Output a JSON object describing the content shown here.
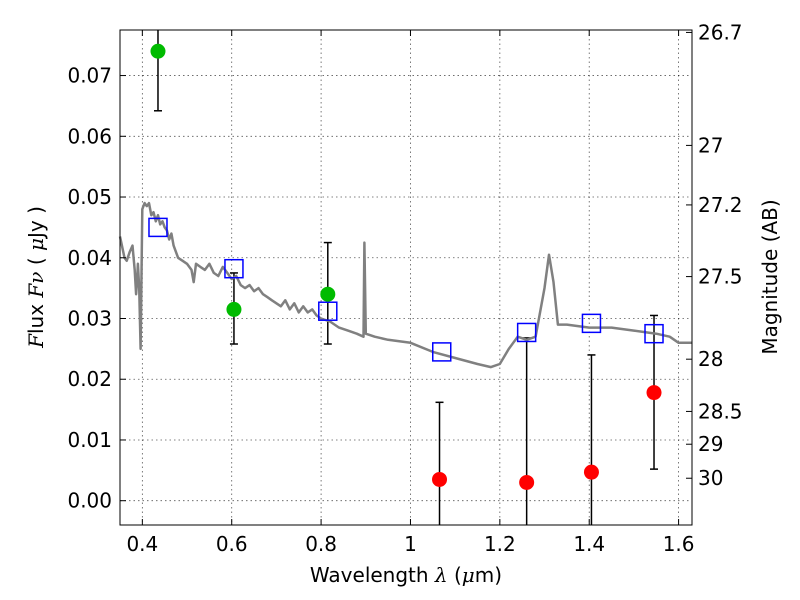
{
  "chart_data": {
    "type": "scatter",
    "title": "",
    "xlabel": "Wavelength  λ (μm)",
    "ylabel": "Flux  Fν  ( μJy )",
    "y2label": "Magnitude (AB)",
    "xlim": [
      0.35,
      1.63
    ],
    "ylim": [
      -0.004,
      0.0775
    ],
    "grid": true,
    "x_ticks": [
      0.4,
      0.6,
      0.8,
      1.0,
      1.2,
      1.4,
      1.6
    ],
    "x_tick_labels": [
      "0.4",
      "0.6",
      "0.8",
      "1",
      "1.2",
      "1.4",
      "1.6"
    ],
    "y_ticks": [
      0.0,
      0.01,
      0.02,
      0.03,
      0.04,
      0.05,
      0.06,
      0.07
    ],
    "y_tick_labels": [
      "0.00",
      "0.01",
      "0.02",
      "0.03",
      "0.04",
      "0.05",
      "0.06",
      "0.07"
    ],
    "y2_ticks": [
      {
        "label": "26.7",
        "flux": 0.0771
      },
      {
        "label": "27",
        "flux": 0.0585
      },
      {
        "label": "27.2",
        "flux": 0.0487
      },
      {
        "label": "27.5",
        "flux": 0.0369
      },
      {
        "label": "28",
        "flux": 0.0233
      },
      {
        "label": "28.5",
        "flux": 0.0147
      },
      {
        "label": "29",
        "flux": 0.0093
      },
      {
        "label": "30",
        "flux": 0.0037
      }
    ],
    "series": [
      {
        "marker": "open-square",
        "color": "#0000ff",
        "points": [
          {
            "x": 0.435,
            "y": 0.045
          },
          {
            "x": 0.605,
            "y": 0.0382
          },
          {
            "x": 0.815,
            "y": 0.0312
          },
          {
            "x": 1.07,
            "y": 0.0245
          },
          {
            "x": 1.26,
            "y": 0.0277
          },
          {
            "x": 1.405,
            "y": 0.0292
          },
          {
            "x": 1.545,
            "y": 0.0275
          }
        ]
      },
      {
        "marker": "filled-circle",
        "color": "#00bb00",
        "points": [
          {
            "x": 0.435,
            "y": 0.074,
            "yerr_low": 0.0642,
            "yerr_high": 0.0795
          },
          {
            "x": 0.605,
            "y": 0.0315,
            "yerr_low": 0.0258,
            "yerr_high": 0.0375
          },
          {
            "x": 0.815,
            "y": 0.034,
            "yerr_low": 0.0258,
            "yerr_high": 0.0425
          }
        ]
      },
      {
        "marker": "filled-circle",
        "color": "#ff0000",
        "points": [
          {
            "x": 1.065,
            "y": 0.0035,
            "yerr_low": -0.0045,
            "yerr_high": 0.0162
          },
          {
            "x": 1.26,
            "y": 0.003,
            "yerr_low": -0.0045,
            "yerr_high": 0.0268
          },
          {
            "x": 1.405,
            "y": 0.0047,
            "yerr_low": -0.0045,
            "yerr_high": 0.024
          },
          {
            "x": 1.545,
            "y": 0.0178,
            "yerr_low": 0.0052,
            "yerr_high": 0.0305
          }
        ]
      },
      {
        "type": "line",
        "color": "#808080",
        "x": [
          0.35,
          0.36,
          0.365,
          0.372,
          0.378,
          0.383,
          0.386,
          0.388,
          0.39,
          0.393,
          0.396,
          0.4,
          0.405,
          0.41,
          0.415,
          0.42,
          0.425,
          0.43,
          0.435,
          0.44,
          0.445,
          0.45,
          0.455,
          0.46,
          0.465,
          0.47,
          0.48,
          0.49,
          0.5,
          0.51,
          0.515,
          0.52,
          0.53,
          0.54,
          0.55,
          0.56,
          0.57,
          0.58,
          0.59,
          0.6,
          0.61,
          0.62,
          0.63,
          0.64,
          0.65,
          0.66,
          0.67,
          0.68,
          0.69,
          0.7,
          0.71,
          0.72,
          0.73,
          0.74,
          0.75,
          0.76,
          0.77,
          0.78,
          0.79,
          0.8,
          0.82,
          0.84,
          0.86,
          0.88,
          0.895,
          0.897,
          0.9,
          0.92,
          0.95,
          1.0,
          1.05,
          1.1,
          1.15,
          1.18,
          1.2,
          1.22,
          1.24,
          1.26,
          1.28,
          1.3,
          1.31,
          1.32,
          1.33,
          1.35,
          1.4,
          1.45,
          1.5,
          1.55,
          1.58,
          1.6,
          1.63
        ],
        "y": [
          0.0435,
          0.04,
          0.0395,
          0.041,
          0.042,
          0.038,
          0.034,
          0.036,
          0.039,
          0.035,
          0.025,
          0.048,
          0.049,
          0.0485,
          0.049,
          0.047,
          0.0475,
          0.046,
          0.047,
          0.0455,
          0.046,
          0.045,
          0.0445,
          0.043,
          0.044,
          0.042,
          0.04,
          0.0395,
          0.039,
          0.038,
          0.036,
          0.039,
          0.0385,
          0.038,
          0.039,
          0.0375,
          0.037,
          0.0385,
          0.0375,
          0.0365,
          0.037,
          0.0355,
          0.035,
          0.0355,
          0.0345,
          0.035,
          0.034,
          0.0335,
          0.033,
          0.0325,
          0.032,
          0.033,
          0.0315,
          0.0325,
          0.031,
          0.032,
          0.031,
          0.0315,
          0.0305,
          0.03,
          0.0295,
          0.0285,
          0.028,
          0.0275,
          0.027,
          0.0425,
          0.0275,
          0.027,
          0.0265,
          0.026,
          0.0245,
          0.0235,
          0.0225,
          0.022,
          0.0225,
          0.025,
          0.027,
          0.0265,
          0.027,
          0.035,
          0.0405,
          0.036,
          0.029,
          0.029,
          0.0285,
          0.0285,
          0.028,
          0.0275,
          0.027,
          0.026,
          0.026
        ]
      }
    ]
  }
}
